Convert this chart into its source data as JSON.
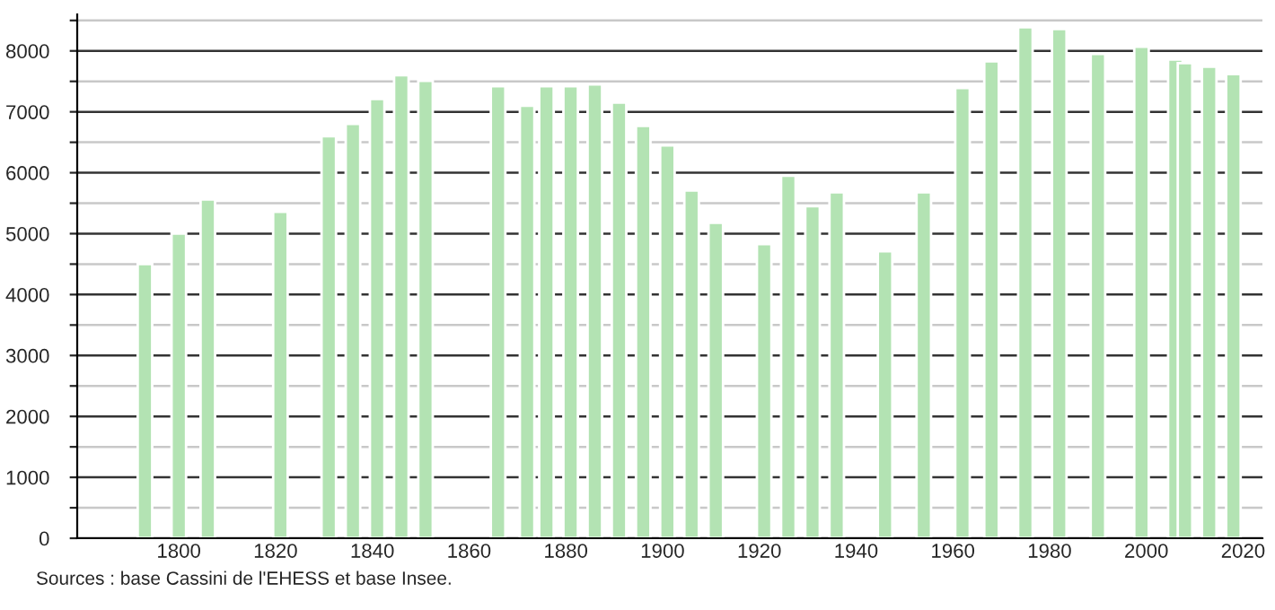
{
  "chart_data": {
    "type": "bar",
    "x": [
      1793,
      1800,
      1806,
      1821,
      1831,
      1836,
      1841,
      1846,
      1851,
      1866,
      1872,
      1876,
      1881,
      1886,
      1891,
      1896,
      1901,
      1906,
      1911,
      1921,
      1926,
      1931,
      1936,
      1946,
      1954,
      1962,
      1968,
      1975,
      1982,
      1990,
      1999,
      2006,
      2008,
      2013,
      2018
    ],
    "series": [
      {
        "color": "#b3e3b3",
        "values": [
          4500,
          5000,
          5560,
          5360,
          6600,
          6800,
          7210,
          7600,
          7510,
          7420,
          7100,
          7420,
          7420,
          7450,
          7150,
          6770,
          6450,
          5710,
          5180,
          4830,
          5950,
          5450,
          5680,
          4710,
          5680,
          7390,
          7830,
          8390,
          8360,
          7950,
          8070,
          7860,
          7800,
          7740,
          7620
        ]
      }
    ],
    "xlim": [
      1779,
      2024
    ],
    "xticks": [
      1800,
      1820,
      1840,
      1860,
      1880,
      1900,
      1920,
      1940,
      1960,
      1980,
      2000,
      2020
    ],
    "ylim": [
      0,
      8600
    ],
    "yticks": [
      0,
      {
        "value": 500,
        "label": null
      },
      1000,
      {
        "value": 1500,
        "label": null
      },
      2000,
      {
        "value": 2500,
        "label": null
      },
      3000,
      {
        "value": 3500,
        "label": null
      },
      4000,
      {
        "value": 4500,
        "label": null
      },
      5000,
      {
        "value": 5500,
        "label": null
      },
      6000,
      {
        "value": 6500,
        "label": null
      },
      7000,
      {
        "value": 7500,
        "label": null
      },
      8000,
      {
        "value": 8500,
        "label": null
      }
    ],
    "grid": "y",
    "legend": false,
    "annotations": [
      "Sources : base Cassini de l'EHESS et base Insee."
    ]
  }
}
